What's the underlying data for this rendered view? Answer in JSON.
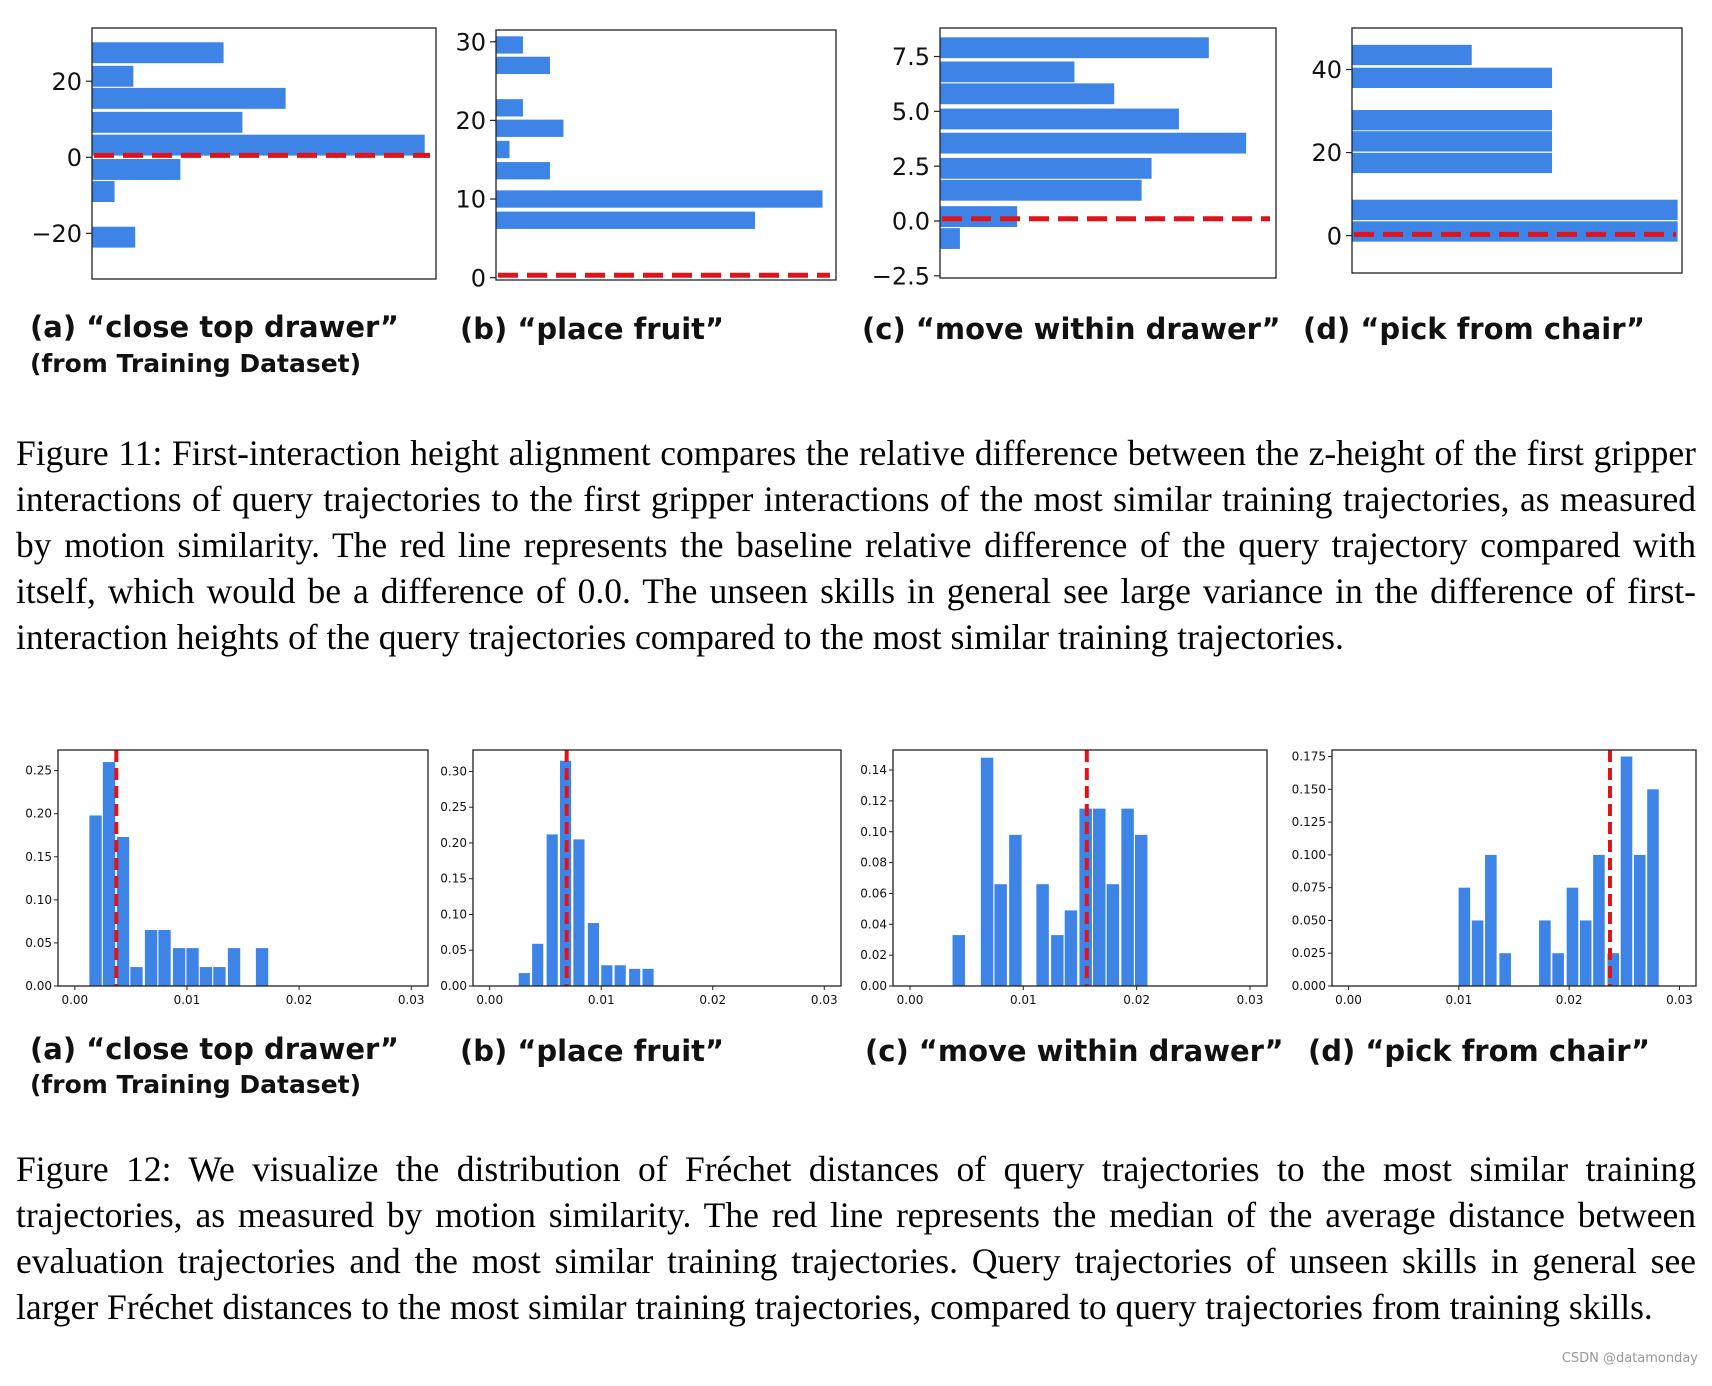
{
  "colors": {
    "bar": "#3d84e6",
    "ref": "#e0131a",
    "axis": "#222222"
  },
  "figure11": {
    "caption": "Figure 11: First-interaction height alignment compares the relative difference between the z-height of the first gripper interactions of query trajectories to the first gripper interactions of the most similar training trajectories, as measured by motion similarity. The red line represents the baseline relative difference of the query trajectory compared with itself, which would be a difference of 0.0. The unseen skills in general see large variance in the difference of first-interaction heights of the query trajectories compared to the most similar training trajectories.",
    "panels": [
      {
        "label": "(a) “close top drawer”",
        "sublabel": "(from Training Dataset)"
      },
      {
        "label": "(b) “place fruit”"
      },
      {
        "label": "(c) “move within drawer”"
      },
      {
        "label": "(d) “pick from chair”"
      }
    ]
  },
  "figure12": {
    "caption": "Figure 12: We visualize the distribution of Fréchet distances of query trajectories to the most similar training trajectories, as measured by motion similarity. The red line represents the median of the average distance between evaluation trajectories and the most similar training trajectories. Query trajectories of unseen skills in general see larger Fréchet distances to the most similar training trajectories, compared to query trajectories from training skills.",
    "panels": [
      {
        "label": "(a) “close top drawer”",
        "sublabel": "(from Training Dataset)"
      },
      {
        "label": "(b) “place fruit”"
      },
      {
        "label": "(c) “move within drawer”"
      },
      {
        "label": "(d) “pick from chair”"
      }
    ]
  },
  "chart_data": [
    {
      "id": "f11a",
      "type": "bar",
      "orientation": "horizontal",
      "ylim": [
        -32,
        34
      ],
      "xlim": [
        0,
        18.3
      ],
      "yticks": [
        -20,
        0,
        20
      ],
      "ytick_labels": [
        "−20",
        "0",
        "20"
      ],
      "bar_height": 5.5,
      "bars": [
        {
          "y": 27.5,
          "value": 7.0
        },
        {
          "y": 21.3,
          "value": 2.2
        },
        {
          "y": 15.5,
          "value": 10.3
        },
        {
          "y": 9.2,
          "value": 8.0
        },
        {
          "y": 3.2,
          "value": 17.7
        },
        {
          "y": -3.2,
          "value": 4.7
        },
        {
          "y": -9.0,
          "value": 1.2
        },
        {
          "y": -21.0,
          "value": 2.3
        }
      ],
      "ref": {
        "axis": "y",
        "value": 0.5
      }
    },
    {
      "id": "f11b",
      "type": "bar",
      "orientation": "horizontal",
      "ylim": [
        -0.3,
        31.5
      ],
      "xlim": [
        0,
        12.6
      ],
      "yticks": [
        0,
        10,
        20,
        30
      ],
      "ytick_labels": [
        "0",
        "10",
        "20",
        "30"
      ],
      "bar_height": 2.2,
      "bars": [
        {
          "y": 29.6,
          "value": 1.0
        },
        {
          "y": 27.0,
          "value": 2.0
        },
        {
          "y": 21.6,
          "value": 1.0
        },
        {
          "y": 19.0,
          "value": 2.5
        },
        {
          "y": 16.3,
          "value": 0.5
        },
        {
          "y": 13.6,
          "value": 2.0
        },
        {
          "y": 10.0,
          "value": 12.1
        },
        {
          "y": 7.3,
          "value": 9.6
        }
      ],
      "ref": {
        "axis": "y",
        "value": 0.3
      }
    },
    {
      "id": "f11c",
      "type": "bar",
      "orientation": "horizontal",
      "ylim": [
        -2.6,
        8.8
      ],
      "xlim": [
        0,
        13.5
      ],
      "yticks": [
        -2.5,
        0.0,
        2.5,
        5.0,
        7.5
      ],
      "ytick_labels": [
        "−2.5",
        "0.0",
        "2.5",
        "5.0",
        "7.5"
      ],
      "bar_height": 0.95,
      "bars": [
        {
          "y": 7.9,
          "value": 10.8
        },
        {
          "y": 6.8,
          "value": 5.4
        },
        {
          "y": 5.8,
          "value": 7.0
        },
        {
          "y": 4.65,
          "value": 9.6
        },
        {
          "y": 3.55,
          "value": 12.3
        },
        {
          "y": 2.4,
          "value": 8.5
        },
        {
          "y": 1.4,
          "value": 8.1
        },
        {
          "y": 0.2,
          "value": 3.1
        },
        {
          "y": -0.8,
          "value": 0.8
        }
      ],
      "ref": {
        "axis": "y",
        "value": 0.1
      }
    },
    {
      "id": "f11d",
      "type": "bar",
      "orientation": "horizontal",
      "ylim": [
        -9,
        50
      ],
      "xlim": [
        0,
        22.6
      ],
      "yticks": [
        0,
        20,
        40
      ],
      "ytick_labels": [
        "0",
        "20",
        "40"
      ],
      "bar_height": 4.9,
      "bars": [
        {
          "y": 43.5,
          "value": 8.2
        },
        {
          "y": 38.0,
          "value": 13.7
        },
        {
          "y": 27.8,
          "value": 13.7
        },
        {
          "y": 22.7,
          "value": 13.7
        },
        {
          "y": 17.5,
          "value": 13.7
        },
        {
          "y": 6.2,
          "value": 22.3
        },
        {
          "y": 1.0,
          "value": 22.3
        }
      ],
      "ref": {
        "axis": "y",
        "value": 0.3
      }
    },
    {
      "id": "f12a",
      "type": "bar",
      "orientation": "vertical",
      "xlim": [
        -0.0015,
        0.0315
      ],
      "ylim": [
        0,
        0.274
      ],
      "xticks": [
        0,
        0.01,
        0.02,
        0.03
      ],
      "xtick_labels": [
        "0.00",
        "0.01",
        "0.02",
        "0.03"
      ],
      "yticks": [
        0,
        0.05,
        0.1,
        0.15,
        0.2,
        0.25
      ],
      "ytick_labels": [
        "0.00",
        "0.05",
        "0.10",
        "0.15",
        "0.20",
        "0.25"
      ],
      "bin_width": 0.0011,
      "bars": [
        {
          "x": 0.00185,
          "value": 0.198
        },
        {
          "x": 0.00305,
          "value": 0.26
        },
        {
          "x": 0.0043,
          "value": 0.173
        },
        {
          "x": 0.0055,
          "value": 0.022
        },
        {
          "x": 0.0068,
          "value": 0.065
        },
        {
          "x": 0.008,
          "value": 0.065
        },
        {
          "x": 0.0093,
          "value": 0.044
        },
        {
          "x": 0.0105,
          "value": 0.044
        },
        {
          "x": 0.0117,
          "value": 0.022
        },
        {
          "x": 0.0129,
          "value": 0.022
        },
        {
          "x": 0.0142,
          "value": 0.044
        },
        {
          "x": 0.0167,
          "value": 0.044
        }
      ],
      "ref": {
        "axis": "x",
        "value": 0.0037
      }
    },
    {
      "id": "f12b",
      "type": "bar",
      "orientation": "vertical",
      "xlim": [
        -0.0015,
        0.0315
      ],
      "ylim": [
        0,
        0.33
      ],
      "xticks": [
        0,
        0.01,
        0.02,
        0.03
      ],
      "xtick_labels": [
        "0.00",
        "0.01",
        "0.02",
        "0.03"
      ],
      "yticks": [
        0,
        0.05,
        0.1,
        0.15,
        0.2,
        0.25,
        0.3
      ],
      "ytick_labels": [
        "0.00",
        "0.05",
        "0.10",
        "0.15",
        "0.20",
        "0.25",
        "0.30"
      ],
      "bin_width": 0.001,
      "bars": [
        {
          "x": 0.0031,
          "value": 0.018
        },
        {
          "x": 0.0043,
          "value": 0.059
        },
        {
          "x": 0.0056,
          "value": 0.212
        },
        {
          "x": 0.0068,
          "value": 0.315
        },
        {
          "x": 0.008,
          "value": 0.205
        },
        {
          "x": 0.0093,
          "value": 0.088
        },
        {
          "x": 0.0105,
          "value": 0.029
        },
        {
          "x": 0.0117,
          "value": 0.029
        },
        {
          "x": 0.0142,
          "value": 0.024
        },
        {
          "x": 0.013,
          "value": 0.024
        }
      ],
      "ref": {
        "axis": "x",
        "value": 0.0069
      }
    },
    {
      "id": "f12c",
      "type": "bar",
      "orientation": "vertical",
      "xlim": [
        -0.0015,
        0.0315
      ],
      "ylim": [
        0,
        0.153
      ],
      "xticks": [
        0,
        0.01,
        0.02,
        0.03
      ],
      "xtick_labels": [
        "0.00",
        "0.01",
        "0.02",
        "0.03"
      ],
      "yticks": [
        0,
        0.02,
        0.04,
        0.06,
        0.08,
        0.1,
        0.12,
        0.14
      ],
      "ytick_labels": [
        "0.00",
        "0.02",
        "0.04",
        "0.06",
        "0.08",
        "0.10",
        "0.12",
        "0.14"
      ],
      "bin_width": 0.0011,
      "bars": [
        {
          "x": 0.0043,
          "value": 0.033
        },
        {
          "x": 0.0068,
          "value": 0.148
        },
        {
          "x": 0.008,
          "value": 0.066
        },
        {
          "x": 0.0093,
          "value": 0.098
        },
        {
          "x": 0.0117,
          "value": 0.066
        },
        {
          "x": 0.013,
          "value": 0.033
        },
        {
          "x": 0.0142,
          "value": 0.049
        },
        {
          "x": 0.0155,
          "value": 0.115
        },
        {
          "x": 0.0167,
          "value": 0.115
        },
        {
          "x": 0.0179,
          "value": 0.066
        },
        {
          "x": 0.0192,
          "value": 0.115
        },
        {
          "x": 0.0204,
          "value": 0.098
        }
      ],
      "ref": {
        "axis": "x",
        "value": 0.0156
      }
    },
    {
      "id": "f12d",
      "type": "bar",
      "orientation": "vertical",
      "xlim": [
        -0.0015,
        0.0315
      ],
      "ylim": [
        0,
        0.18
      ],
      "xticks": [
        0,
        0.01,
        0.02,
        0.03
      ],
      "xtick_labels": [
        "0.00",
        "0.01",
        "0.02",
        "0.03"
      ],
      "yticks": [
        0,
        0.025,
        0.05,
        0.075,
        0.1,
        0.125,
        0.15,
        0.175
      ],
      "ytick_labels": [
        "0.000",
        "0.025",
        "0.050",
        "0.075",
        "0.100",
        "0.125",
        "0.150",
        "0.175"
      ],
      "bin_width": 0.00105,
      "bars": [
        {
          "x": 0.0105,
          "value": 0.075
        },
        {
          "x": 0.0117,
          "value": 0.05
        },
        {
          "x": 0.0129,
          "value": 0.1
        },
        {
          "x": 0.0142,
          "value": 0.025
        },
        {
          "x": 0.0178,
          "value": 0.05
        },
        {
          "x": 0.019,
          "value": 0.025
        },
        {
          "x": 0.0203,
          "value": 0.075
        },
        {
          "x": 0.0215,
          "value": 0.05
        },
        {
          "x": 0.0227,
          "value": 0.1
        },
        {
          "x": 0.024,
          "value": 0.025
        },
        {
          "x": 0.0252,
          "value": 0.175
        },
        {
          "x": 0.0264,
          "value": 0.1
        },
        {
          "x": 0.0276,
          "value": 0.15
        }
      ],
      "ref": {
        "axis": "x",
        "value": 0.0237
      }
    }
  ],
  "watermark": "CSDN @datamonday"
}
